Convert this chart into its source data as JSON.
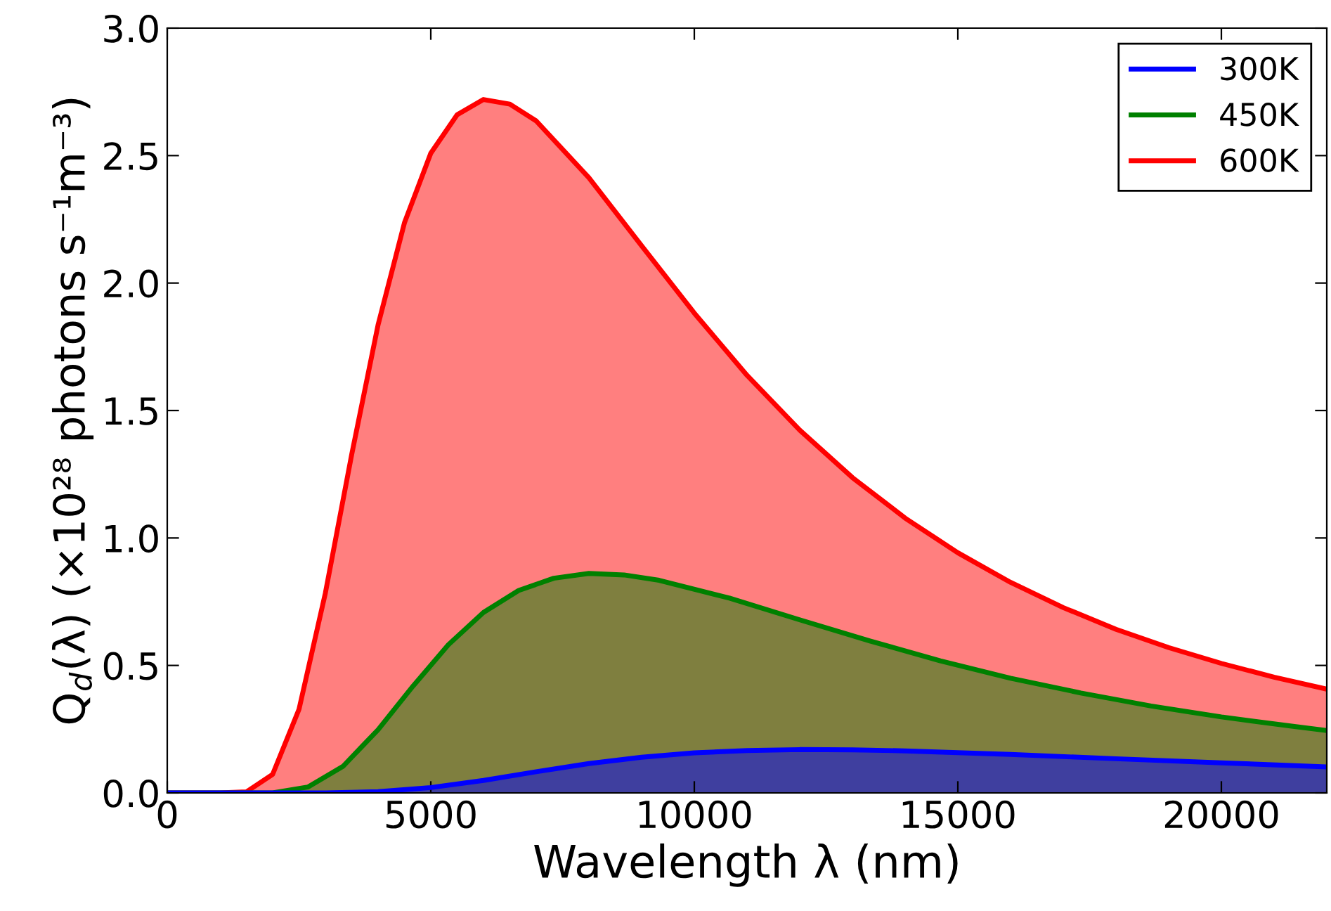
{
  "chart_data": {
    "type": "area",
    "xlabel": "Wavelength λ (nm)",
    "ylabel": "Q$_{d}$(λ) (×10²⁸ photons s⁻¹m⁻³)",
    "xlim": [
      0,
      22000
    ],
    "xticks": [
      0,
      5000,
      10000,
      15000,
      20000
    ],
    "ylim": [
      0,
      3.0
    ],
    "yticks": [
      {
        "value": 0,
        "label": "0.0"
      },
      {
        "value": 0.5,
        "label": "0.5"
      },
      {
        "value": 1.0,
        "label": "1.0"
      },
      {
        "value": 1.5,
        "label": "1.5"
      },
      {
        "value": 2.0,
        "label": "2.0"
      },
      {
        "value": 2.5,
        "label": "2.5"
      },
      {
        "value": 3.0,
        "label": "3.0"
      }
    ],
    "legend": "top right",
    "grid": false,
    "series": [
      {
        "name": "300K",
        "color": "#0000ff",
        "x": [
          0,
          2000,
          3000,
          4000,
          5000,
          6000,
          7000,
          8000,
          9000,
          10000,
          11000,
          12000,
          13000,
          14000,
          16000,
          18000,
          20000,
          22000
        ],
        "values": [
          0,
          0,
          0,
          0.005,
          0.021,
          0.049,
          0.083,
          0.115,
          0.14,
          0.157,
          0.166,
          0.17,
          0.169,
          0.165,
          0.151,
          0.134,
          0.118,
          0.102
        ]
      },
      {
        "name": "450K",
        "color": "#008000",
        "x": [
          0,
          1333,
          2000,
          2667,
          3333,
          4000,
          4667,
          5333,
          6000,
          6667,
          7333,
          8000,
          8667,
          9333,
          10667,
          12000,
          13333,
          14667,
          16000,
          17333,
          18667,
          20000,
          21333,
          22000
        ],
        "values": [
          0,
          0,
          0,
          0.023,
          0.104,
          0.248,
          0.42,
          0.581,
          0.708,
          0.794,
          0.842,
          0.861,
          0.855,
          0.834,
          0.764,
          0.679,
          0.596,
          0.518,
          0.45,
          0.392,
          0.341,
          0.298,
          0.262,
          0.245
        ]
      },
      {
        "name": "600K",
        "color": "#ff0000",
        "x": [
          0,
          1000,
          1500,
          2000,
          2500,
          3000,
          3500,
          4000,
          4500,
          5000,
          5500,
          6000,
          6500,
          7000,
          8000,
          9000,
          10000,
          11000,
          12000,
          13000,
          14000,
          15000,
          16000,
          17000,
          18000,
          19000,
          20000,
          21000,
          22000
        ],
        "values": [
          0,
          0,
          0.004,
          0.073,
          0.328,
          0.784,
          1.328,
          1.836,
          2.236,
          2.509,
          2.66,
          2.72,
          2.702,
          2.636,
          2.413,
          2.146,
          1.882,
          1.638,
          1.423,
          1.237,
          1.078,
          0.942,
          0.826,
          0.727,
          0.642,
          0.57,
          0.508,
          0.454,
          0.407
        ]
      }
    ]
  }
}
